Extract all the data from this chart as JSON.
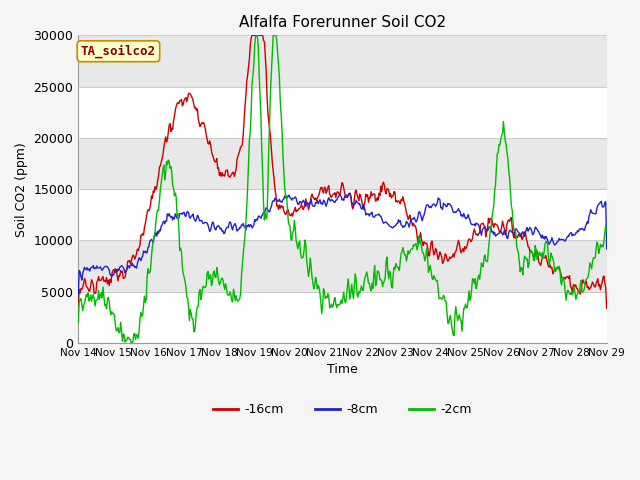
{
  "title": "Alfalfa Forerunner Soil CO2",
  "ylabel": "Soil CO2 (ppm)",
  "xlabel": "Time",
  "annotation": "TA_soilco2",
  "ylim": [
    0,
    30000
  ],
  "yticks": [
    0,
    5000,
    10000,
    15000,
    20000,
    25000,
    30000
  ],
  "xtick_labels": [
    "Nov 14",
    "Nov 15",
    "Nov 16",
    "Nov 17",
    "Nov 18",
    "Nov 19",
    "Nov 20",
    "Nov 21",
    "Nov 22",
    "Nov 23",
    "Nov 24",
    "Nov 25",
    "Nov 26",
    "Nov 27",
    "Nov 28",
    "Nov 29"
  ],
  "colors": {
    "red": "#cc0000",
    "blue": "#2222cc",
    "green": "#00bb00",
    "bg_light": "#e8e8e8",
    "bg_dark": "#d0d0d0",
    "grid": "#ffffff",
    "annotation_bg": "#ffffcc",
    "annotation_border": "#cc9900"
  },
  "legend": [
    "-16cm",
    "-8cm",
    "-2cm"
  ],
  "series_colors": [
    "#cc0000",
    "#2222cc",
    "#00bb00"
  ],
  "num_days": 15,
  "seed": 42
}
